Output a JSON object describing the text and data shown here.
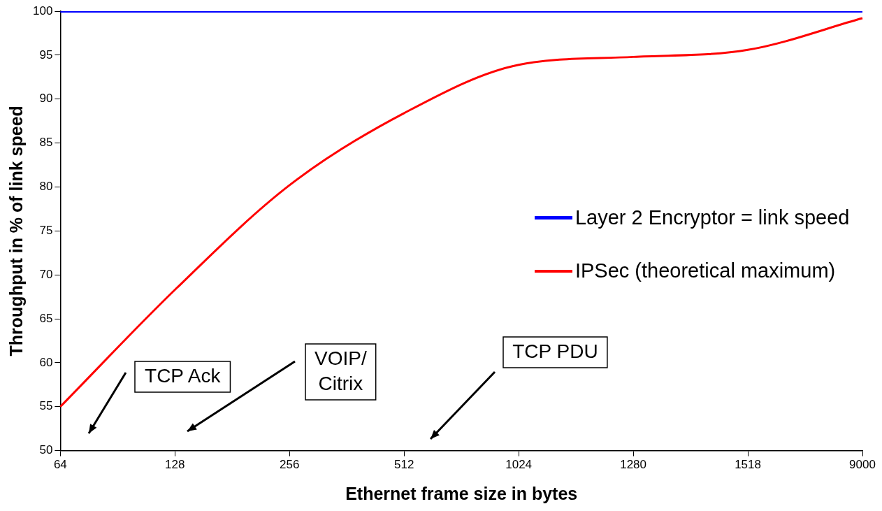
{
  "chart_data": {
    "type": "line",
    "xlabel": "Ethernet frame size in bytes",
    "ylabel": "Throughput in % of link speed",
    "categories": [
      "64",
      "128",
      "256",
      "512",
      "1024",
      "1280",
      "1518",
      "9000"
    ],
    "series": [
      {
        "name": "Layer 2 Encryptor = link speed",
        "color": "#0000ff",
        "values": [
          100,
          100,
          100,
          100,
          100,
          100,
          100,
          100
        ]
      },
      {
        "name": "IPSec (theoretical maximum)",
        "color": "#ff0000",
        "values": [
          55.0,
          68.3,
          80.2,
          88.4,
          93.9,
          94.8,
          95.6,
          99.2
        ]
      }
    ],
    "ylim": [
      50,
      100
    ],
    "yticks": [
      50,
      55,
      60,
      65,
      70,
      75,
      80,
      85,
      90,
      95,
      100
    ],
    "grid": false,
    "legend": "right",
    "marker": "none",
    "line_style": "solid",
    "annotations": [
      "TCP Ack",
      "VOIP/\nCitrix",
      "TCP PDU"
    ]
  }
}
